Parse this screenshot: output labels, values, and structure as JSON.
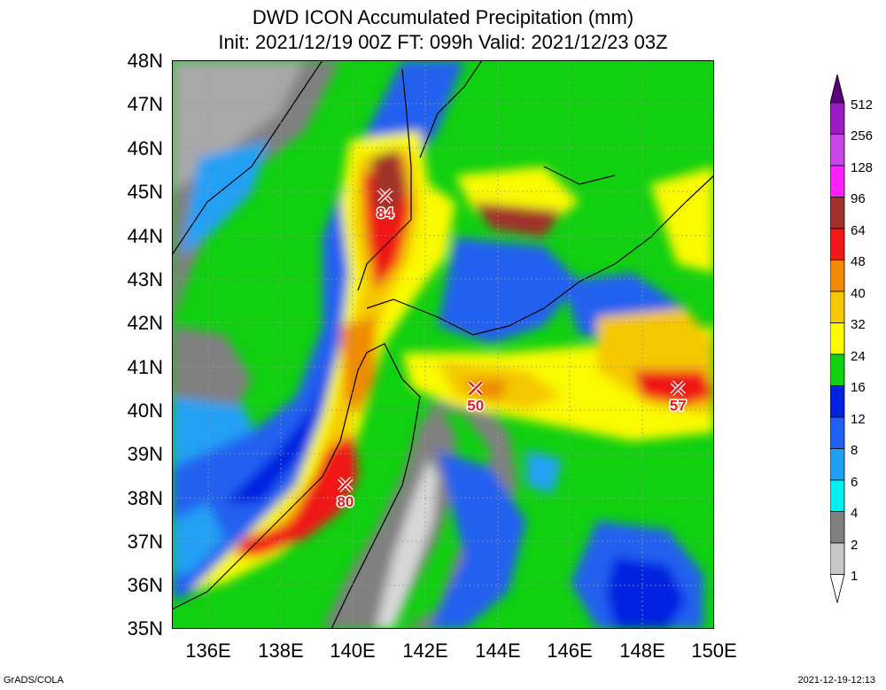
{
  "header": {
    "title_line1": "DWD ICON Accumulated Precipitation (mm)",
    "title_line2": "Init: 2021/12/19 00Z  FT: 099h  Valid: 2021/12/23 03Z"
  },
  "axes": {
    "lat_labels": [
      "48N",
      "47N",
      "46N",
      "45N",
      "44N",
      "43N",
      "42N",
      "41N",
      "40N",
      "39N",
      "38N",
      "37N",
      "36N",
      "35N"
    ],
    "lon_labels": [
      "136E",
      "138E",
      "140E",
      "142E",
      "144E",
      "146E",
      "148E",
      "150E"
    ]
  },
  "colorbar": {
    "labels": [
      "512",
      "256",
      "128",
      "96",
      "64",
      "48",
      "40",
      "32",
      "24",
      "16",
      "12",
      "8",
      "6",
      "4",
      "2",
      "1"
    ],
    "colors": [
      "#5a0078",
      "#9b1bc2",
      "#c845e6",
      "#ff20ff",
      "#a0302a",
      "#f01818",
      "#f08a00",
      "#f5c800",
      "#fafa00",
      "#10d010",
      "#0022e0",
      "#2060f0",
      "#20a0f5",
      "#00f0f0",
      "#808080",
      "#c8c8c8"
    ]
  },
  "markers": [
    {
      "value": "84",
      "lat": 44.9,
      "lon": 140.9
    },
    {
      "value": "50",
      "lat": 40.5,
      "lon": 143.4
    },
    {
      "value": "57",
      "lat": 40.5,
      "lon": 149.0
    },
    {
      "value": "80",
      "lat": 38.3,
      "lon": 139.8
    }
  ],
  "footer": {
    "left": "GrADS/COLA",
    "right": "2021-12-19-12:13"
  }
}
